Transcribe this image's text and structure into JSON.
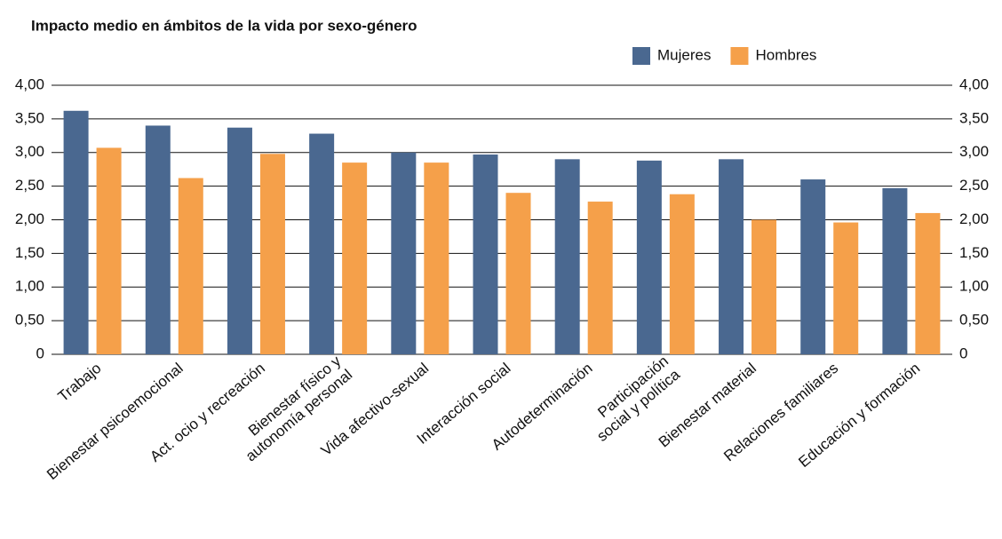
{
  "chart_data": {
    "type": "bar",
    "title": "Impacto medio en ámbitos de la vida por sexo-género",
    "categories": [
      "Trabajo",
      "Bienestar psicoemocional",
      "Act. ocio y recreación",
      "Bienestar físico y\nautonomía personal",
      "Vida afectivo-sexual",
      "Interacción social",
      "Autodeterminación",
      "Participación\nsocial y política",
      "Bienestar material",
      "Relaciones familiares",
      "Educación y formación"
    ],
    "series": [
      {
        "name": "Mujeres",
        "color": "#4a6890",
        "values": [
          3.62,
          3.4,
          3.37,
          3.28,
          3.0,
          2.97,
          2.9,
          2.88,
          2.9,
          2.6,
          2.47
        ]
      },
      {
        "name": "Hombres",
        "color": "#f5a04a",
        "values": [
          3.07,
          2.62,
          2.98,
          2.85,
          2.85,
          2.4,
          2.27,
          2.38,
          2.0,
          1.96,
          2.1
        ]
      }
    ],
    "ylim": [
      0,
      4
    ],
    "yticks": [
      0,
      {
        "value": 0.5,
        "label": "0,50"
      },
      {
        "value": 1,
        "label": "1,00"
      },
      {
        "value": 1.5,
        "label": "1,50"
      },
      {
        "value": 2,
        "label": "2,00"
      },
      {
        "value": 2.5,
        "label": "2,50"
      },
      {
        "value": 3,
        "label": "3,00"
      },
      {
        "value": 3.5,
        "label": "3,50"
      },
      {
        "value": 4,
        "label": "4,00"
      }
    ],
    "grid": true,
    "legend": "top-right",
    "right_axis": true
  }
}
